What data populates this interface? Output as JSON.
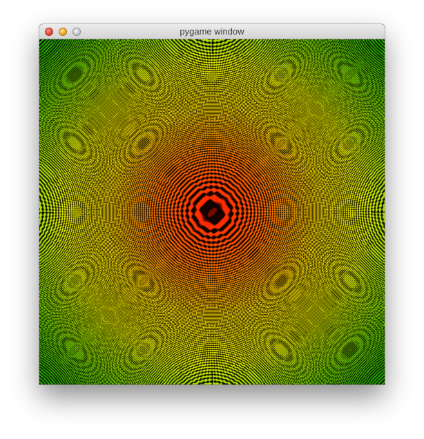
{
  "window": {
    "title": "pygame window",
    "controls": {
      "close": "close-icon",
      "minimize": "minimize-icon",
      "zoom": "zoom-icon"
    }
  },
  "canvas": {
    "description_colors": {
      "center": "#ff1a00",
      "mid": "#ffd800",
      "outer": "#2ec000",
      "lines": "#000000"
    }
  }
}
